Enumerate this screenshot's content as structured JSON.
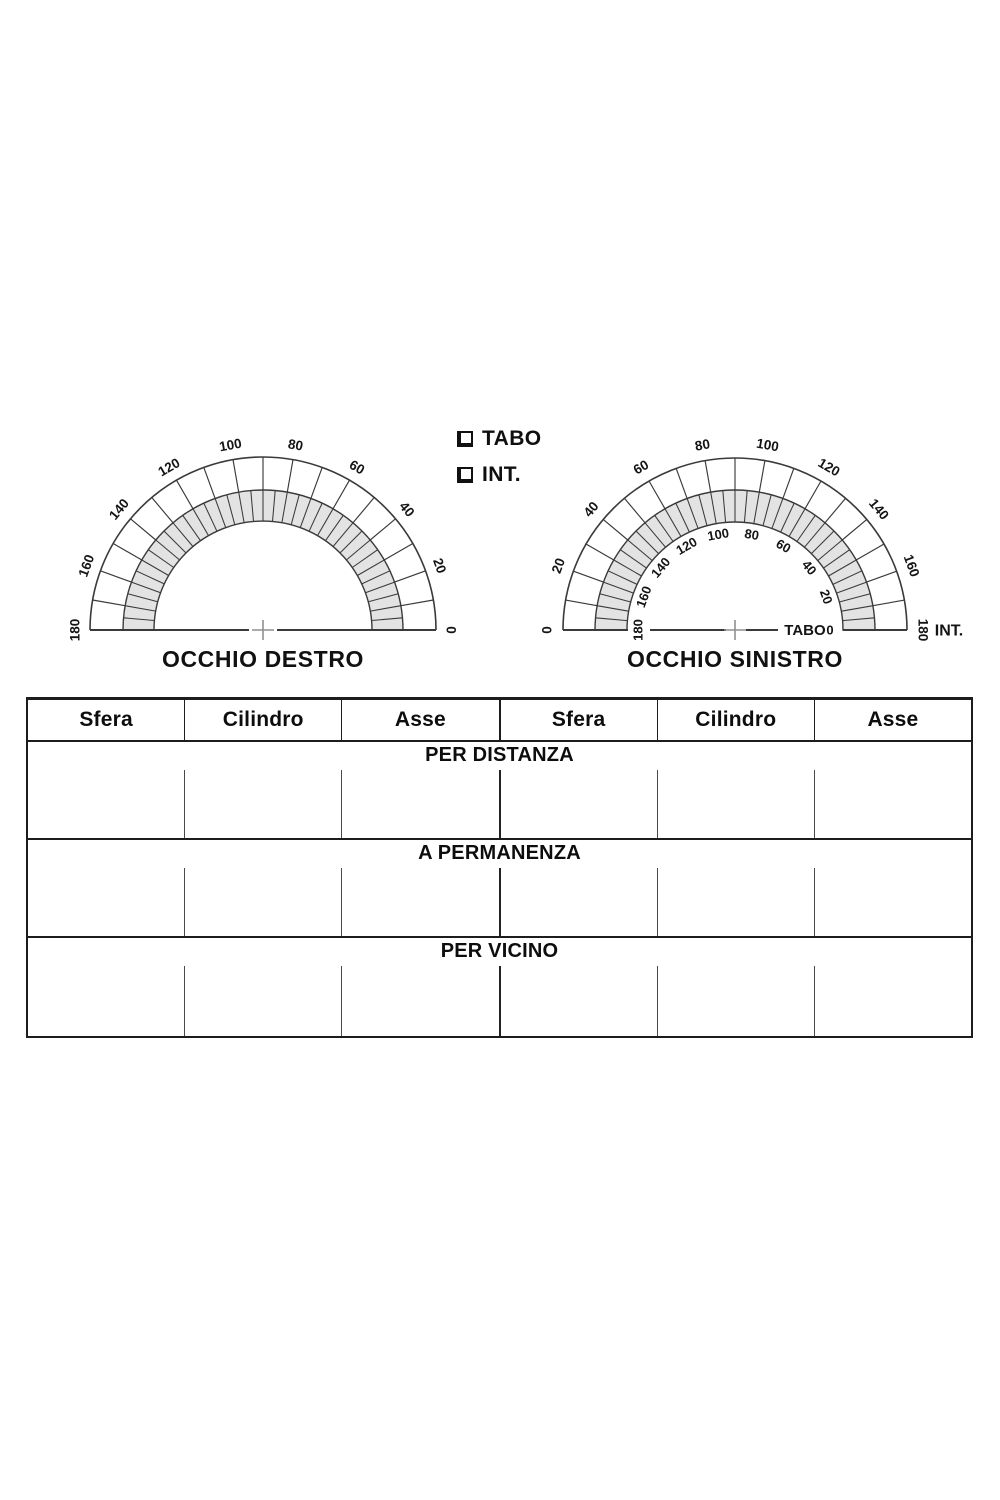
{
  "colors": {
    "line": "#3a3a3a",
    "band": "#e3e3e3",
    "ink": "#141414",
    "cross": "#8f8f8f"
  },
  "legend": {
    "items": [
      {
        "label": "TABO"
      },
      {
        "label": "INT."
      }
    ]
  },
  "protractors": {
    "right_eye": {
      "title": "OCCHIO DESTRO",
      "outer_labels": [
        {
          "angle": 0,
          "text": "0"
        },
        {
          "angle": 20,
          "text": "20"
        },
        {
          "angle": 40,
          "text": "40"
        },
        {
          "angle": 60,
          "text": "60"
        },
        {
          "angle": 80,
          "text": "80"
        },
        {
          "angle": 100,
          "text": "100"
        },
        {
          "angle": 120,
          "text": "120"
        },
        {
          "angle": 140,
          "text": "140"
        },
        {
          "angle": 160,
          "text": "160"
        },
        {
          "angle": 180,
          "text": "180"
        }
      ],
      "inner_labels": []
    },
    "left_eye": {
      "title": "OCCHIO SINISTRO",
      "outer_labels": [
        {
          "angle": 0,
          "text": "180"
        },
        {
          "angle": 20,
          "text": "160"
        },
        {
          "angle": 40,
          "text": "140"
        },
        {
          "angle": 60,
          "text": "120"
        },
        {
          "angle": 80,
          "text": "100"
        },
        {
          "angle": 100,
          "text": "80"
        },
        {
          "angle": 120,
          "text": "60"
        },
        {
          "angle": 140,
          "text": "40"
        },
        {
          "angle": 160,
          "text": "20"
        },
        {
          "angle": 180,
          "text": "0"
        }
      ],
      "inner_labels": [
        {
          "angle": 20,
          "text": "20"
        },
        {
          "angle": 40,
          "text": "40"
        },
        {
          "angle": 60,
          "text": "60"
        },
        {
          "angle": 80,
          "text": "80"
        },
        {
          "angle": 100,
          "text": "100"
        },
        {
          "angle": 120,
          "text": "120"
        },
        {
          "angle": 140,
          "text": "140"
        },
        {
          "angle": 160,
          "text": "160"
        },
        {
          "angle": 180,
          "text": "180"
        }
      ],
      "tabo_text": "TABO",
      "tabo_zero": "0",
      "int_text": "INT."
    }
  },
  "table": {
    "headers": [
      "Sfera",
      "Cilindro",
      "Asse",
      "Sfera",
      "Cilindro",
      "Asse"
    ],
    "sections": [
      {
        "title": "PER DISTANZA"
      },
      {
        "title": "A PERMANENZA"
      },
      {
        "title": "PER VICINO"
      }
    ]
  }
}
